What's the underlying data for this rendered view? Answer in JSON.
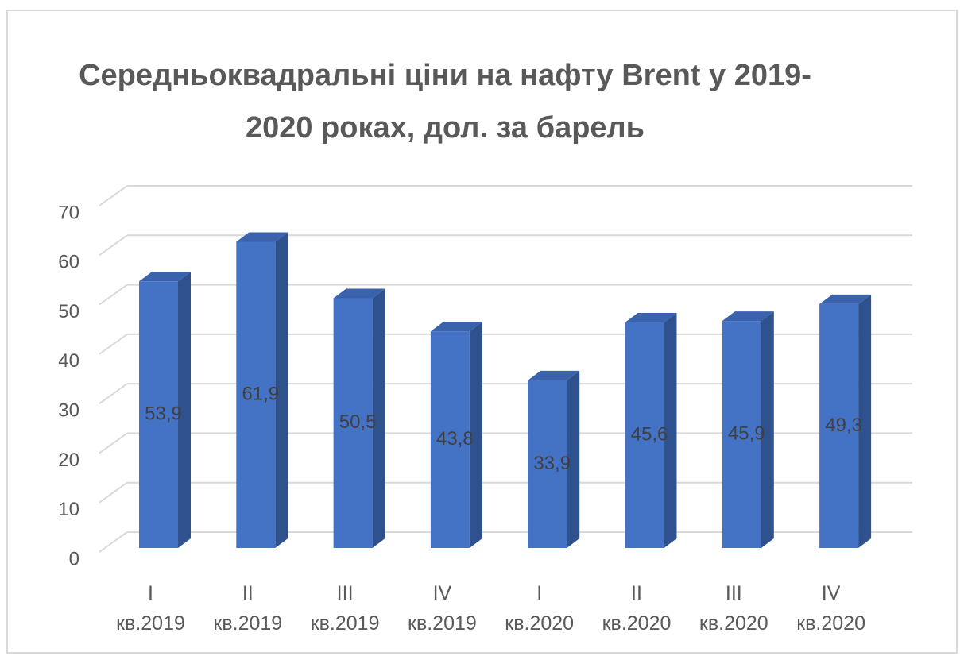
{
  "chart_data": {
    "type": "bar3d",
    "title": "Середньоквадральні ціни на нафту Brent у 2019-2020 роках, дол. за барель",
    "categories": [
      "I кв.2019",
      "II кв.2019",
      "III кв.2019",
      "IV кв.2019",
      "I кв.2020",
      "II кв.2020",
      "III кв.2020",
      "IV кв.2020"
    ],
    "values": [
      53.9,
      61.9,
      50.5,
      43.8,
      33.9,
      45.6,
      45.9,
      49.3
    ],
    "value_labels": [
      "53,9",
      "61,9",
      "50,5",
      "43,8",
      "33,9",
      "45,6",
      "45,9",
      "49,3"
    ],
    "color": "#4472c4",
    "ylim": [
      0,
      70
    ],
    "yticks": [
      0,
      10,
      20,
      30,
      40,
      50,
      60,
      70
    ],
    "grid": true
  }
}
